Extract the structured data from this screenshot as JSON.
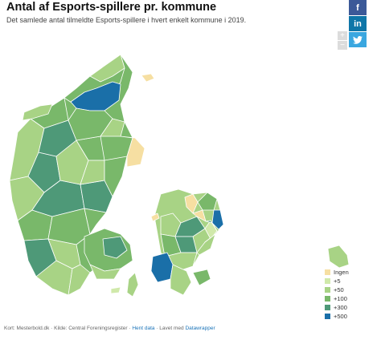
{
  "header": {
    "title": "Antal af Esports-spillere pr. kommune",
    "subtitle": "Det samlede antal tilmeldte Esports-spillere i hvert enkelt kommune i 2019."
  },
  "share": {
    "facebook": {
      "label": "f",
      "icon": "facebook-icon",
      "color": "#3b5998"
    },
    "linkedin": {
      "label": "in",
      "icon": "linkedin-icon",
      "color": "#0e76a8"
    },
    "twitter": {
      "label": "t",
      "icon": "twitter-icon",
      "color": "#3aa7e0"
    }
  },
  "zoom": {
    "in_label": "+",
    "out_label": "−"
  },
  "legend": [
    {
      "label": "Ingen",
      "color": "#f6dfa2"
    },
    {
      "label": "+5",
      "color": "#d0e9aa"
    },
    {
      "label": "+50",
      "color": "#a8d385"
    },
    {
      "label": "+100",
      "color": "#79b86a"
    },
    {
      "label": "+300",
      "color": "#4e9978"
    },
    {
      "label": "+500",
      "color": "#1a6fa8"
    }
  ],
  "footer": {
    "text": "Kort: Mesterbold.dk · Kilde: Central Foreningsregister · ",
    "link1": "Hent data",
    "sep": " · Lavet med ",
    "link2": "Datawrapper"
  }
}
